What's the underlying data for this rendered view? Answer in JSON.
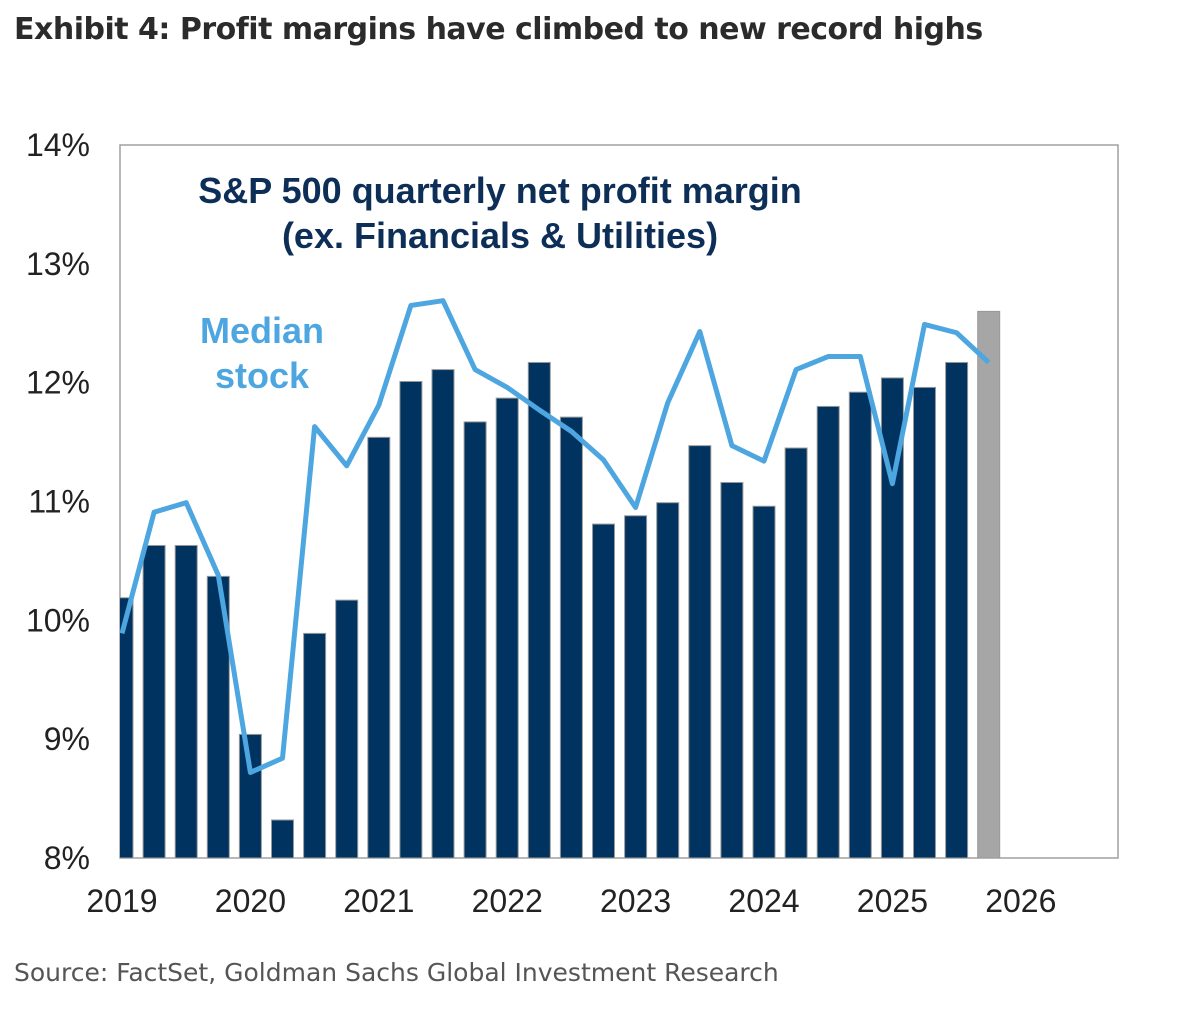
{
  "title": "Exhibit 4: Profit margins have climbed to new record highs",
  "source": "Source: FactSet, Goldman Sachs Global Investment Research",
  "chart_data": {
    "type": "bar",
    "title_line1": "S&P 500 quarterly net profit margin",
    "title_line2": "(ex. Financials & Utilities)",
    "line_label_line1": "Median",
    "line_label_line2": "stock",
    "x_tick_labels": [
      "2019",
      "2020",
      "2021",
      "2022",
      "2023",
      "2024",
      "2025",
      "2026"
    ],
    "y_tick_labels": [
      "8%",
      "9%",
      "10%",
      "11%",
      "12%",
      "13%",
      "14%"
    ],
    "ylim": [
      8,
      14
    ],
    "grid": false,
    "categories": [
      "2019Q1",
      "2019Q2",
      "2019Q3",
      "2019Q4",
      "2020Q1",
      "2020Q2",
      "2020Q3",
      "2020Q4",
      "2021Q1",
      "2021Q2",
      "2021Q3",
      "2021Q4",
      "2022Q1",
      "2022Q2",
      "2022Q3",
      "2022Q4",
      "2023Q1",
      "2023Q2",
      "2023Q3",
      "2023Q4",
      "2024Q1",
      "2024Q2",
      "2024Q3",
      "2024Q4",
      "2025Q1",
      "2025Q2",
      "2025Q3",
      "2025Q4"
    ],
    "series": [
      {
        "type": "bar",
        "values": [
          10.19,
          10.63,
          10.63,
          10.37,
          9.04,
          8.32,
          9.89,
          10.17,
          11.54,
          12.01,
          12.11,
          11.67,
          11.87,
          12.17,
          11.71,
          10.81,
          10.88,
          10.99,
          11.47,
          11.16,
          10.96,
          11.45,
          11.8,
          11.92,
          12.04,
          11.96,
          12.17,
          12.6
        ],
        "color": "#003360",
        "highlight_last_color": "#a6a6a6"
      },
      {
        "type": "line",
        "name": "Median stock",
        "values": [
          9.89,
          10.91,
          10.99,
          10.38,
          8.72,
          8.84,
          11.63,
          11.3,
          11.81,
          12.65,
          12.69,
          12.11,
          11.96,
          11.77,
          11.59,
          11.35,
          10.95,
          11.83,
          12.43,
          11.47,
          11.34,
          12.11,
          12.22,
          12.22,
          11.15,
          12.49,
          12.42,
          12.17
        ],
        "color": "#4da6e0"
      }
    ]
  }
}
